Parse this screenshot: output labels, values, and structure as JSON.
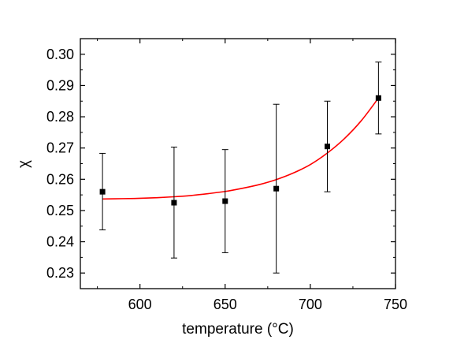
{
  "chart_data": {
    "type": "scatter",
    "xlabel": "temperature (°C)",
    "ylabel": "χ",
    "xlim": [
      565,
      750
    ],
    "ylim": [
      0.225,
      0.305
    ],
    "x_ticks": [
      {
        "value": 600,
        "label": "600"
      },
      {
        "value": 650,
        "label": "650"
      },
      {
        "value": 700,
        "label": "700"
      },
      {
        "value": 750,
        "label": "750"
      }
    ],
    "y_ticks": [
      {
        "value": 0.23,
        "label": "0.23"
      },
      {
        "value": 0.24,
        "label": "0.24"
      },
      {
        "value": 0.25,
        "label": "0.25"
      },
      {
        "value": 0.26,
        "label": "0.26"
      },
      {
        "value": 0.27,
        "label": "0.27"
      },
      {
        "value": 0.28,
        "label": "0.28"
      },
      {
        "value": 0.29,
        "label": "0.29"
      },
      {
        "value": 0.3,
        "label": "0.30"
      }
    ],
    "grid": false,
    "series": [
      {
        "kind": "points",
        "color": "#000000",
        "marker": "square",
        "points": [
          {
            "x": 578,
            "y": 0.256,
            "y_low": 0.2438,
            "y_high": 0.2683
          },
          {
            "x": 620,
            "y": 0.2525,
            "y_low": 0.2348,
            "y_high": 0.2703
          },
          {
            "x": 650,
            "y": 0.253,
            "y_low": 0.2365,
            "y_high": 0.2695
          },
          {
            "x": 680,
            "y": 0.257,
            "y_low": 0.23,
            "y_high": 0.284
          },
          {
            "x": 710,
            "y": 0.2705,
            "y_low": 0.256,
            "y_high": 0.285
          },
          {
            "x": 740,
            "y": 0.286,
            "y_low": 0.2745,
            "y_high": 0.2975
          }
        ]
      },
      {
        "kind": "fit-curve",
        "color": "#ff0000",
        "x": [
          578,
          590,
          600,
          610,
          620,
          630,
          640,
          650,
          660,
          670,
          680,
          690,
          700,
          710,
          720,
          730,
          740
        ],
        "y": [
          0.2537,
          0.2538,
          0.2539,
          0.2541,
          0.2544,
          0.2548,
          0.2554,
          0.2561,
          0.2571,
          0.2583,
          0.2599,
          0.262,
          0.2647,
          0.2684,
          0.273,
          0.2788,
          0.286
        ]
      }
    ]
  }
}
